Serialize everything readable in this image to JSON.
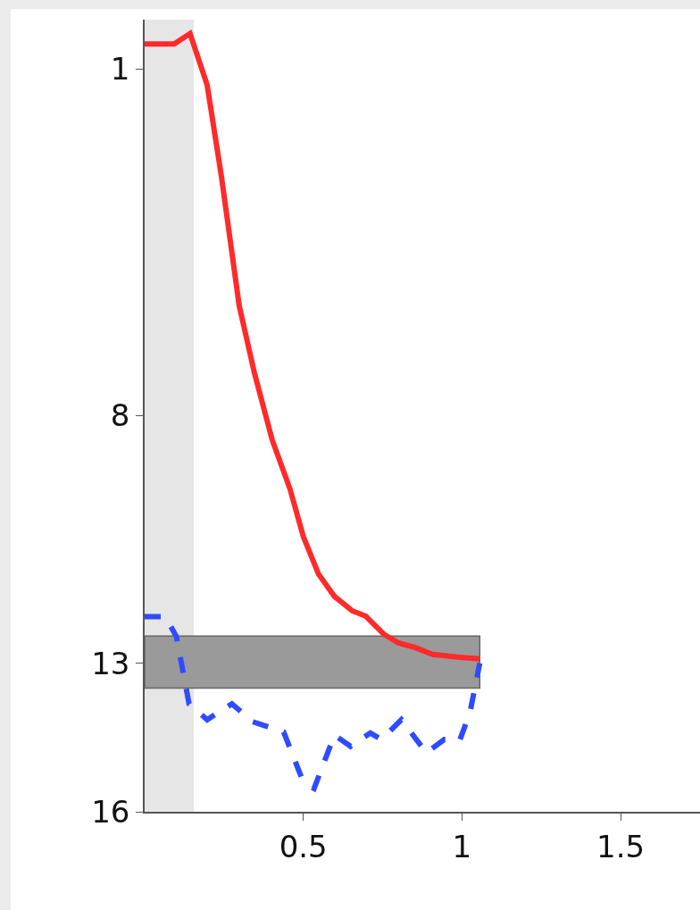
{
  "chart_data": {
    "type": "line",
    "xlim": [
      0,
      1.75
    ],
    "xticks": [
      0.5,
      1,
      1.5
    ],
    "ylim": [
      16,
      0
    ],
    "yticks": [
      1,
      8,
      13,
      16
    ],
    "grid": false,
    "bands": [
      {
        "axis": "x",
        "from": 0,
        "to": 0.155,
        "color": "#e6e6e6"
      },
      {
        "axis": "y",
        "from": 12.45,
        "to": 13.5,
        "color": "#9a9a9a"
      }
    ],
    "series": [
      {
        "color": "#ff2a2a",
        "line_style": "solid",
        "x": [
          0,
          0.093,
          0.143,
          0.197,
          0.242,
          0.298,
          0.346,
          0.402,
          0.458,
          0.5,
          0.548,
          0.598,
          0.654,
          0.697,
          0.753,
          0.8,
          0.851,
          0.907,
          0.992,
          1.056
        ],
        "values": [
          0.49,
          0.49,
          0.28,
          1.32,
          3.17,
          5.78,
          7.14,
          8.49,
          9.48,
          10.44,
          11.2,
          11.65,
          11.94,
          12.05,
          12.41,
          12.59,
          12.68,
          12.82,
          12.88,
          12.91
        ]
      },
      {
        "color": "#2f4bff",
        "line_style": "dashed",
        "x": [
          0,
          0.065,
          0.1,
          0.14,
          0.197,
          0.275,
          0.34,
          0.438,
          0.5,
          0.534,
          0.598,
          0.649,
          0.711,
          0.747,
          0.809,
          0.888,
          0.944,
          0.992,
          1.025,
          1.056
        ],
        "values": [
          12.06,
          12.06,
          12.46,
          13.82,
          14.14,
          13.82,
          14.18,
          14.39,
          15.4,
          15.53,
          14.45,
          14.68,
          14.41,
          14.54,
          14.14,
          14.81,
          14.54,
          14.57,
          14.0,
          13.0
        ]
      }
    ]
  }
}
